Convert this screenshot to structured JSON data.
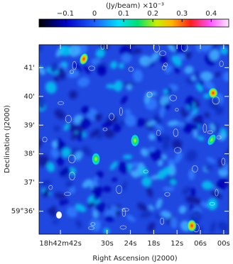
{
  "chart_data": {
    "type": "image",
    "colorbar": {
      "title": "(Jy/beam)   ×10⁻³",
      "clim": [
        -0.19,
        0.46
      ],
      "ticks": [
        {
          "value": -0.1,
          "label": "−0.1"
        },
        0,
        0.1,
        0.2,
        0.3,
        0.4
      ]
    },
    "xlabel": "Right Ascension (J2000)",
    "ylabel": "Declination (J2000)",
    "xlim": [
      47.5,
      -1.3
    ],
    "xticks": [
      {
        "value": 42,
        "label": "18h42m42s"
      },
      {
        "value": 30,
        "label": "30s"
      },
      {
        "value": 24,
        "label": "24s"
      },
      {
        "value": 18,
        "label": "18s"
      },
      {
        "value": 12,
        "label": "12s"
      },
      {
        "value": 6,
        "label": "06s"
      },
      {
        "value": 0,
        "label": "00s"
      }
    ],
    "ylim": [
      35.2,
      41.8
    ],
    "yticks": [
      {
        "value": 36,
        "label": "59°36'"
      },
      {
        "value": 37,
        "label": "37'"
      },
      {
        "value": 38,
        "label": "38'"
      },
      {
        "value": 39,
        "label": "39'"
      },
      {
        "value": 40,
        "label": "40'"
      },
      {
        "value": 41,
        "label": "41'"
      }
    ]
  }
}
